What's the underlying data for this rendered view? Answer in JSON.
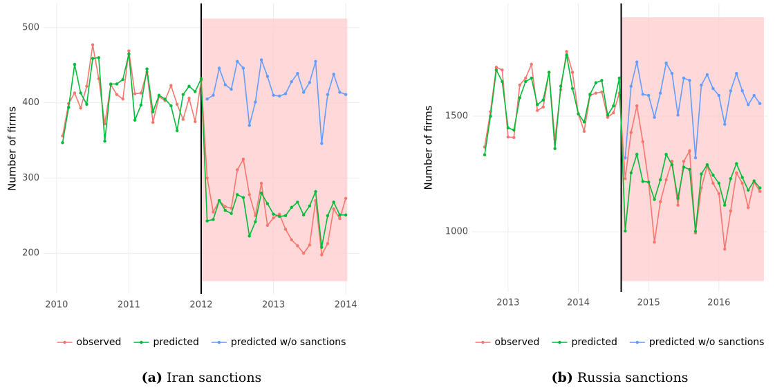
{
  "chart_data": [
    {
      "type": "line",
      "ylabel": "Number of firms",
      "caption_label": "(a)",
      "caption": "Iran sanctions",
      "xlim": [
        2009.82,
        2014.19
      ],
      "ylim": [
        146,
        532
      ],
      "xticks": [
        2010,
        2011,
        2012,
        2013,
        2014
      ],
      "yticks": [
        200,
        300,
        400,
        500
      ],
      "grid": true,
      "vline": 2012,
      "shade_x": [
        2012,
        2014.02
      ],
      "shade_y": [
        163,
        512
      ],
      "shade_color": "#ffcccc",
      "x": [
        2010.083,
        2010.167,
        2010.25,
        2010.333,
        2010.417,
        2010.5,
        2010.583,
        2010.667,
        2010.75,
        2010.833,
        2010.917,
        2011,
        2011.083,
        2011.167,
        2011.25,
        2011.333,
        2011.417,
        2011.5,
        2011.583,
        2011.667,
        2011.75,
        2011.833,
        2011.917,
        2012,
        2012.083,
        2012.167,
        2012.25,
        2012.333,
        2012.417,
        2012.5,
        2012.583,
        2012.667,
        2012.75,
        2012.833,
        2012.917,
        2013,
        2013.083,
        2013.167,
        2013.25,
        2013.333,
        2013.417,
        2013.5,
        2013.583,
        2013.667,
        2013.75,
        2013.833,
        2013.917,
        2014
      ],
      "series": [
        {
          "name": "observed",
          "color": "#F8766D",
          "values": [
            356,
            399,
            413,
            393,
            422,
            477,
            432,
            372,
            424,
            411,
            405,
            469,
            412,
            413,
            441,
            374,
            408,
            403,
            423,
            398,
            378,
            406,
            375,
            430,
            300,
            255,
            270,
            262,
            260,
            311,
            325,
            278,
            250,
            293,
            237,
            247,
            252,
            232,
            218,
            210,
            200,
            211,
            270,
            198,
            213,
            259,
            246,
            273
          ]
        },
        {
          "name": "predicted",
          "color": "#00BA38",
          "values": [
            347,
            394,
            451,
            413,
            398,
            459,
            460,
            349,
            425,
            425,
            431,
            465,
            377,
            397,
            445,
            388,
            410,
            405,
            396,
            363,
            411,
            422,
            415,
            432,
            243,
            245,
            270,
            257,
            253,
            278,
            274,
            223,
            242,
            280,
            266,
            252,
            249,
            250,
            261,
            268,
            251,
            263,
            282,
            208,
            250,
            268,
            251,
            251
          ]
        },
        {
          "name": "predicted w/o sanctions",
          "color": "#619CFF",
          "values": [
            null,
            null,
            null,
            null,
            null,
            null,
            null,
            null,
            null,
            null,
            null,
            null,
            null,
            null,
            null,
            null,
            null,
            null,
            null,
            null,
            null,
            null,
            null,
            null,
            405,
            410,
            446,
            424,
            418,
            455,
            446,
            370,
            401,
            457,
            435,
            410,
            409,
            412,
            428,
            439,
            414,
            427,
            455,
            346,
            411,
            438,
            414,
            411
          ]
        }
      ]
    },
    {
      "type": "line",
      "ylabel": "Number of firms",
      "caption_label": "(b)",
      "caption": "Russia sanctions",
      "xlim": [
        2012.49,
        2016.69
      ],
      "ylim": [
        740,
        1988
      ],
      "xticks": [
        2013,
        2014,
        2015,
        2016
      ],
      "yticks": [
        1000,
        1500
      ],
      "grid": true,
      "vline": 2014.61,
      "shade_x": [
        2014.61,
        2016.64
      ],
      "shade_y": [
        787,
        1928
      ],
      "shade_color": "#ffcccc",
      "x": [
        2012.667,
        2012.75,
        2012.833,
        2012.917,
        2013,
        2013.083,
        2013.167,
        2013.25,
        2013.333,
        2013.417,
        2013.5,
        2013.583,
        2013.667,
        2013.75,
        2013.833,
        2013.917,
        2014,
        2014.083,
        2014.167,
        2014.25,
        2014.333,
        2014.417,
        2014.5,
        2014.583,
        2014.667,
        2014.75,
        2014.833,
        2014.917,
        2015,
        2015.083,
        2015.167,
        2015.25,
        2015.333,
        2015.417,
        2015.5,
        2015.583,
        2015.667,
        2015.75,
        2015.833,
        2015.917,
        2016,
        2016.083,
        2016.167,
        2016.25,
        2016.333,
        2016.417,
        2016.5,
        2016.583
      ],
      "series": [
        {
          "name": "observed",
          "color": "#F8766D",
          "values": [
            1367,
            1520,
            1712,
            1700,
            1410,
            1408,
            1635,
            1665,
            1725,
            1525,
            1540,
            1690,
            1400,
            1615,
            1780,
            1690,
            1510,
            1435,
            1590,
            1600,
            1605,
            1495,
            1515,
            1600,
            1230,
            1430,
            1545,
            1390,
            1215,
            955,
            1130,
            1225,
            1305,
            1115,
            1305,
            1350,
            995,
            1190,
            1285,
            1210,
            1165,
            925,
            1090,
            1255,
            1210,
            1105,
            1215,
            1175
          ]
        },
        {
          "name": "predicted",
          "color": "#00BA38",
          "values": [
            1333,
            1500,
            1700,
            1650,
            1450,
            1440,
            1580,
            1650,
            1665,
            1550,
            1570,
            1690,
            1360,
            1630,
            1765,
            1620,
            1510,
            1475,
            1595,
            1645,
            1655,
            1505,
            1545,
            1665,
            1003,
            1255,
            1335,
            1218,
            1215,
            1140,
            1225,
            1335,
            1290,
            1145,
            1280,
            1270,
            1002,
            1250,
            1290,
            1245,
            1210,
            1115,
            1230,
            1295,
            1235,
            1180,
            1220,
            1190
          ]
        },
        {
          "name": "predicted w/o sanctions",
          "color": "#619CFF",
          "values": [
            null,
            null,
            null,
            null,
            null,
            null,
            null,
            null,
            null,
            null,
            null,
            null,
            null,
            null,
            null,
            null,
            null,
            null,
            null,
            null,
            null,
            null,
            null,
            null,
            1320,
            1630,
            1735,
            1595,
            1590,
            1495,
            1600,
            1730,
            1685,
            1505,
            1665,
            1655,
            1320,
            1635,
            1680,
            1620,
            1590,
            1465,
            1610,
            1685,
            1610,
            1550,
            1590,
            1555
          ]
        }
      ]
    }
  ]
}
